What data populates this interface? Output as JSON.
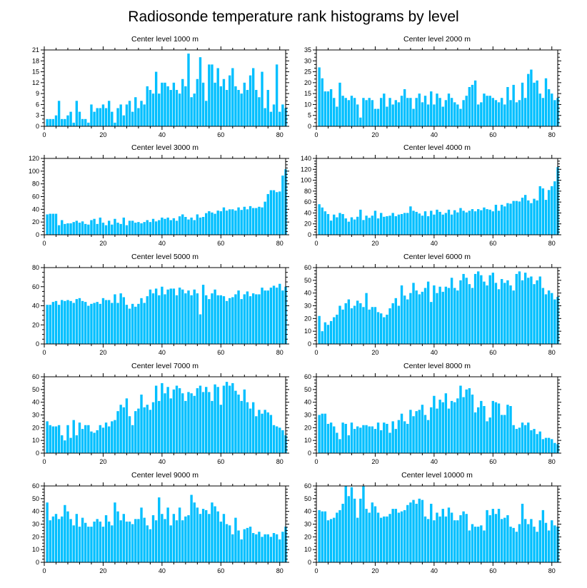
{
  "title": "Radiosonde temperature rank histograms by level",
  "colors": {
    "bar": "#00bfff",
    "bar_edge": "#1aa3e8",
    "axis": "#000000"
  },
  "chart_data": [
    {
      "type": "bar",
      "title": "Center level 1000 m",
      "xlabel": "",
      "ylabel": "",
      "xlim": [
        0,
        82
      ],
      "xticks": [
        0,
        20,
        40,
        60,
        80
      ],
      "ylim": [
        0,
        21
      ],
      "yticks": [
        0,
        3,
        6,
        9,
        12,
        15,
        18,
        21
      ],
      "values": [
        2,
        2,
        2,
        3,
        7,
        2,
        2,
        3,
        4,
        1,
        7,
        4,
        2,
        2,
        1,
        6,
        4,
        5,
        5,
        6,
        5,
        7,
        4,
        1,
        5,
        6,
        3,
        6,
        7,
        4,
        8,
        5,
        7,
        6,
        11,
        10,
        9,
        15,
        9,
        12,
        12,
        11,
        10,
        12,
        10,
        9,
        13,
        11,
        20,
        8,
        9,
        13,
        19,
        12,
        7,
        17,
        17,
        12,
        16,
        11,
        13,
        10,
        14,
        16,
        11,
        10,
        9,
        12,
        10,
        14,
        16,
        10,
        8,
        15,
        5,
        10,
        4,
        6,
        17,
        4,
        6,
        5
      ]
    },
    {
      "type": "bar",
      "title": "Center level 2000 m",
      "xlabel": "",
      "ylabel": "",
      "xlim": [
        0,
        82
      ],
      "xticks": [
        0,
        20,
        40,
        60,
        80
      ],
      "ylim": [
        0,
        35
      ],
      "yticks": [
        0,
        5,
        10,
        15,
        20,
        25,
        30,
        35
      ],
      "values": [
        27,
        22,
        16,
        16,
        17,
        13,
        9,
        20,
        14,
        13,
        12,
        14,
        13,
        10,
        4,
        13,
        12,
        13,
        12,
        8,
        8,
        13,
        15,
        9,
        13,
        10,
        12,
        11,
        14,
        17,
        13,
        13,
        8,
        13,
        15,
        11,
        14,
        10,
        16,
        10,
        15,
        13,
        9,
        12,
        15,
        13,
        11,
        10,
        8,
        12,
        14,
        18,
        19,
        21,
        10,
        11,
        15,
        14,
        14,
        13,
        12,
        11,
        13,
        10,
        18,
        12,
        19,
        11,
        12,
        20,
        13,
        24,
        26,
        20,
        21,
        15,
        13,
        22,
        17,
        15,
        12,
        13
      ]
    },
    {
      "type": "bar",
      "title": "Center level 3000 m",
      "xlabel": "",
      "ylabel": "",
      "xlim": [
        0,
        82
      ],
      "xticks": [
        0,
        20,
        40,
        60,
        80
      ],
      "ylim": [
        0,
        120
      ],
      "yticks": [
        0,
        20,
        40,
        60,
        80,
        100,
        120
      ],
      "values": [
        32,
        33,
        33,
        33,
        15,
        23,
        17,
        18,
        18,
        20,
        22,
        19,
        21,
        17,
        16,
        23,
        25,
        17,
        27,
        19,
        15,
        22,
        16,
        25,
        19,
        17,
        27,
        15,
        22,
        22,
        19,
        20,
        18,
        20,
        23,
        20,
        25,
        21,
        23,
        27,
        25,
        27,
        23,
        26,
        22,
        29,
        32,
        28,
        24,
        27,
        23,
        32,
        27,
        28,
        34,
        37,
        35,
        33,
        38,
        37,
        43,
        38,
        40,
        40,
        38,
        43,
        39,
        44,
        40,
        45,
        42,
        42,
        44,
        43,
        52,
        64,
        70,
        70,
        67,
        68,
        93,
        103
      ]
    },
    {
      "type": "bar",
      "title": "Center level 4000 m",
      "xlabel": "",
      "ylabel": "",
      "xlim": [
        0,
        82
      ],
      "xticks": [
        0,
        20,
        40,
        60,
        80
      ],
      "ylim": [
        0,
        140
      ],
      "yticks": [
        0,
        20,
        40,
        60,
        80,
        100,
        120,
        140
      ],
      "values": [
        56,
        50,
        43,
        38,
        26,
        37,
        32,
        40,
        38,
        30,
        24,
        32,
        28,
        33,
        46,
        27,
        35,
        31,
        35,
        44,
        30,
        40,
        33,
        34,
        35,
        40,
        34,
        37,
        38,
        40,
        40,
        52,
        44,
        42,
        39,
        35,
        43,
        34,
        44,
        37,
        46,
        42,
        37,
        40,
        46,
        37,
        45,
        41,
        49,
        44,
        41,
        44,
        47,
        43,
        47,
        45,
        50,
        47,
        46,
        43,
        55,
        44,
        55,
        52,
        58,
        57,
        62,
        62,
        61,
        68,
        73,
        63,
        58,
        66,
        63,
        89,
        85,
        64,
        82,
        89,
        98,
        124
      ]
    },
    {
      "type": "bar",
      "title": "Center level 5000 m",
      "xlabel": "",
      "ylabel": "",
      "xlim": [
        0,
        82
      ],
      "xticks": [
        0,
        20,
        40,
        60,
        80
      ],
      "ylim": [
        0,
        80
      ],
      "yticks": [
        0,
        20,
        40,
        60,
        80
      ],
      "values": [
        41,
        41,
        44,
        45,
        41,
        46,
        45,
        46,
        45,
        43,
        47,
        48,
        45,
        44,
        40,
        42,
        43,
        44,
        42,
        48,
        46,
        46,
        43,
        52,
        43,
        53,
        49,
        41,
        37,
        42,
        39,
        42,
        48,
        43,
        50,
        57,
        53,
        58,
        51,
        60,
        52,
        57,
        58,
        58,
        51,
        59,
        57,
        53,
        56,
        51,
        57,
        53,
        31,
        62,
        51,
        47,
        53,
        57,
        51,
        51,
        50,
        45,
        48,
        49,
        52,
        56,
        47,
        52,
        55,
        50,
        53,
        52,
        52,
        59,
        56,
        56,
        59,
        61,
        59,
        63,
        56,
        60
      ]
    },
    {
      "type": "bar",
      "title": "Center level 6000 m",
      "xlabel": "",
      "ylabel": "",
      "xlim": [
        0,
        82
      ],
      "xticks": [
        0,
        20,
        40,
        60,
        80
      ],
      "ylim": [
        0,
        60
      ],
      "yticks": [
        0,
        10,
        20,
        30,
        40,
        50,
        60
      ],
      "values": [
        22,
        10,
        17,
        15,
        18,
        21,
        23,
        30,
        27,
        32,
        35,
        28,
        30,
        34,
        32,
        29,
        40,
        27,
        29,
        29,
        25,
        24,
        21,
        23,
        28,
        32,
        36,
        30,
        46,
        38,
        35,
        40,
        48,
        42,
        39,
        41,
        44,
        49,
        33,
        46,
        40,
        45,
        41,
        45,
        44,
        52,
        44,
        42,
        50,
        55,
        52,
        47,
        44,
        55,
        57,
        54,
        49,
        46,
        54,
        56,
        48,
        43,
        51,
        48,
        50,
        46,
        42,
        55,
        57,
        50,
        56,
        52,
        53,
        47,
        50,
        53,
        44,
        39,
        42,
        40,
        35,
        37
      ]
    },
    {
      "type": "bar",
      "title": "Center level 7000 m",
      "xlabel": "",
      "ylabel": "",
      "xlim": [
        0,
        82
      ],
      "xticks": [
        0,
        20,
        40,
        60,
        80
      ],
      "ylim": [
        0,
        60
      ],
      "yticks": [
        0,
        10,
        20,
        30,
        40,
        50,
        60
      ],
      "values": [
        25,
        22,
        21,
        21,
        22,
        14,
        10,
        22,
        12,
        26,
        14,
        24,
        19,
        22,
        22,
        17,
        16,
        18,
        22,
        20,
        24,
        21,
        25,
        26,
        33,
        38,
        36,
        43,
        29,
        22,
        33,
        35,
        46,
        36,
        38,
        34,
        40,
        53,
        41,
        55,
        47,
        52,
        43,
        50,
        53,
        51,
        47,
        41,
        48,
        47,
        45,
        51,
        53,
        48,
        52,
        48,
        41,
        54,
        52,
        38,
        53,
        56,
        53,
        55,
        49,
        46,
        41,
        50,
        40,
        35,
        40,
        29,
        34,
        31,
        34,
        32,
        30,
        22,
        21,
        20,
        18,
        14
      ]
    },
    {
      "type": "bar",
      "title": "Center level 8000 m",
      "xlabel": "",
      "ylabel": "",
      "xlim": [
        0,
        82
      ],
      "xticks": [
        0,
        20,
        40,
        60,
        80
      ],
      "ylim": [
        0,
        60
      ],
      "yticks": [
        0,
        10,
        20,
        30,
        40,
        50,
        60
      ],
      "values": [
        30,
        31,
        31,
        23,
        24,
        21,
        16,
        11,
        24,
        23,
        14,
        24,
        19,
        21,
        20,
        22,
        22,
        21,
        21,
        19,
        24,
        18,
        24,
        23,
        16,
        25,
        19,
        26,
        31,
        25,
        23,
        34,
        29,
        33,
        34,
        38,
        30,
        26,
        36,
        45,
        35,
        42,
        40,
        47,
        35,
        41,
        40,
        43,
        53,
        44,
        50,
        51,
        46,
        32,
        36,
        41,
        37,
        25,
        28,
        41,
        40,
        39,
        30,
        30,
        38,
        37,
        22,
        19,
        20,
        24,
        22,
        24,
        18,
        19,
        15,
        17,
        11,
        12,
        12,
        11,
        8,
        7
      ]
    },
    {
      "type": "bar",
      "title": "Center level 9000 m",
      "xlabel": "",
      "ylabel": "",
      "xlim": [
        0,
        82
      ],
      "xticks": [
        0,
        20,
        40,
        60,
        80
      ],
      "ylim": [
        0,
        60
      ],
      "yticks": [
        0,
        10,
        20,
        30,
        40,
        50,
        60
      ],
      "values": [
        47,
        33,
        36,
        38,
        34,
        36,
        45,
        40,
        34,
        29,
        38,
        28,
        35,
        31,
        28,
        28,
        32,
        34,
        32,
        28,
        37,
        32,
        29,
        47,
        40,
        33,
        38,
        32,
        32,
        30,
        34,
        34,
        43,
        35,
        29,
        26,
        37,
        33,
        51,
        38,
        34,
        43,
        29,
        38,
        33,
        43,
        33,
        36,
        37,
        53,
        47,
        43,
        38,
        42,
        41,
        38,
        47,
        44,
        40,
        32,
        38,
        30,
        29,
        22,
        35,
        25,
        18,
        26,
        27,
        28,
        23,
        22,
        24,
        20,
        22,
        22,
        20,
        23,
        22,
        18,
        24,
        28
      ]
    },
    {
      "type": "bar",
      "title": "Center level 10000 m",
      "xlabel": "",
      "ylabel": "",
      "xlim": [
        0,
        82
      ],
      "xticks": [
        0,
        20,
        40,
        60,
        80
      ],
      "ylim": [
        0,
        60
      ],
      "yticks": [
        0,
        10,
        20,
        30,
        40,
        50,
        60
      ],
      "values": [
        41,
        40,
        40,
        33,
        34,
        35,
        39,
        41,
        46,
        60,
        52,
        59,
        50,
        35,
        50,
        60,
        42,
        39,
        47,
        44,
        39,
        35,
        36,
        36,
        38,
        42,
        42,
        39,
        40,
        41,
        45,
        47,
        49,
        46,
        50,
        49,
        36,
        34,
        46,
        33,
        39,
        36,
        42,
        36,
        43,
        39,
        33,
        33,
        37,
        40,
        38,
        25,
        30,
        28,
        28,
        29,
        25,
        41,
        37,
        42,
        38,
        42,
        34,
        35,
        37,
        28,
        27,
        24,
        30,
        46,
        34,
        30,
        34,
        28,
        24,
        33,
        41,
        31,
        25,
        33,
        29,
        28
      ]
    }
  ]
}
